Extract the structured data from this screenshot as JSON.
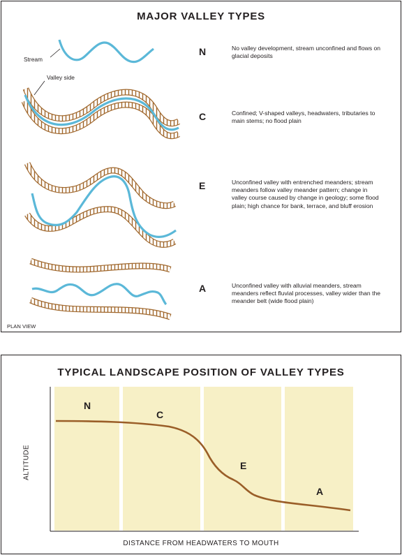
{
  "valley_types": {
    "title": "MAJOR VALLEY TYPES",
    "stream_label": "Stream",
    "valley_side_label": "Valley side",
    "plan_view_label": "PLAN VIEW",
    "types": [
      {
        "code": "N",
        "description": "No valley development, stream unconfined and flows on glacial deposits"
      },
      {
        "code": "C",
        "description": "Confined; V-shaped valleys, headwaters, tributaries to main stems; no flood plain"
      },
      {
        "code": "E",
        "description": "Unconfined valley with entrenched meanders; stream meanders follow valley meander pattern; change in valley course caused by change in geology; some flood plain; high chance for bank, terrace, and bluff erosion"
      },
      {
        "code": "A",
        "description": "Unconfined valley with alluvial meanders, stream meanders reflect fluvial processes, valley wider than the meander belt (wide flood plain)"
      }
    ]
  },
  "landscape": {
    "title": "TYPICAL LANDSCAPE POSITION OF VALLEY TYPES",
    "ylabel": "ALTITUDE",
    "xlabel": "DISTANCE FROM HEADWATERS TO MOUTH",
    "zones": [
      "N",
      "C",
      "E",
      "A"
    ]
  },
  "colors": {
    "stream": "#5bb8d8",
    "valley_side": "#a0672c",
    "zone_fill": "#f7f0c6",
    "profile": "#9a5e28"
  }
}
